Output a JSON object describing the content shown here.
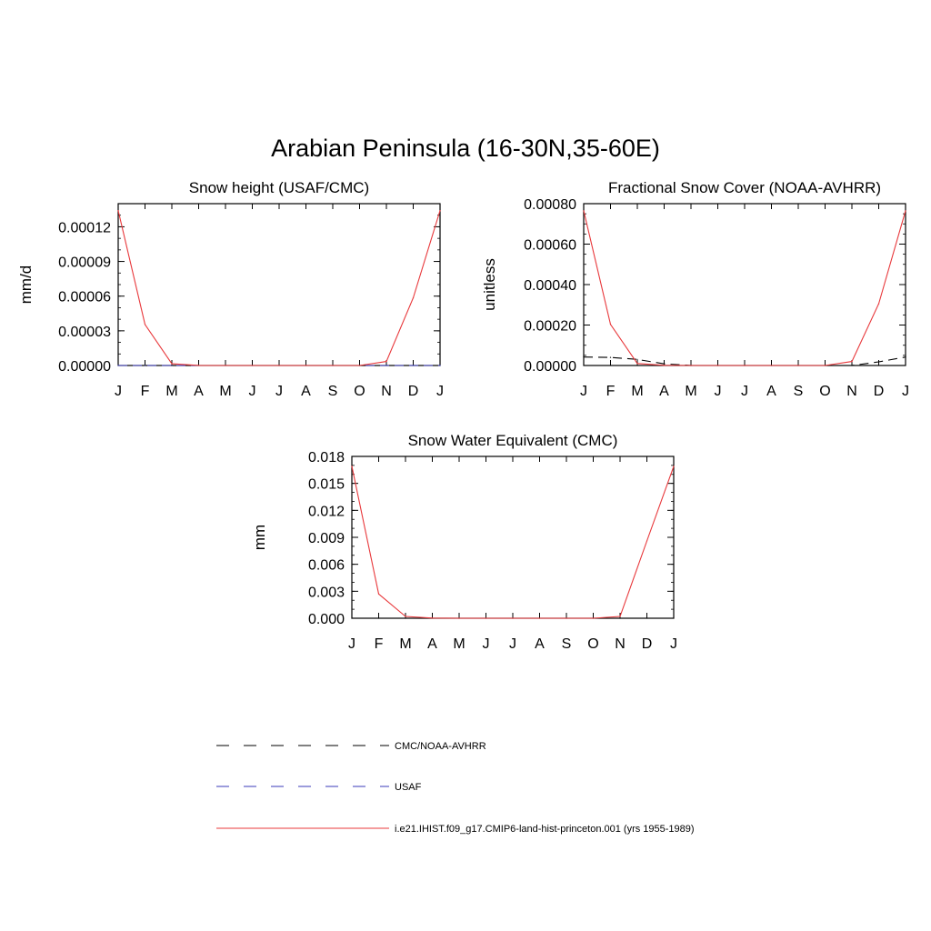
{
  "title": "Arabian Peninsula (16-30N,35-60E)",
  "chart_data": [
    {
      "type": "line",
      "title": "Snow height (USAF/CMC)",
      "ylabel": "mm/d",
      "categories": [
        "J",
        "F",
        "M",
        "A",
        "M",
        "J",
        "J",
        "A",
        "S",
        "O",
        "N",
        "D",
        "J"
      ],
      "ylim": [
        0,
        0.00014
      ],
      "yticks": [
        "0.00000",
        "0.00003",
        "0.00006",
        "0.00009",
        "0.00012"
      ],
      "ytick_values": [
        0,
        3e-05,
        6e-05,
        9e-05,
        0.00012
      ],
      "series": [
        {
          "name": "USAF",
          "color": "#3a3ab8",
          "dash": true,
          "values": [
            0,
            0,
            0,
            0,
            0,
            0,
            0,
            0,
            0,
            0,
            0,
            0,
            0
          ]
        },
        {
          "name": "i.e21.IHIST.f09_g17.CMIP6-land-hist-princeton.001 (yrs 1955-1989)",
          "color": "#e8383b",
          "dash": false,
          "values": [
            0.000134,
            3.55e-05,
            1.5e-06,
            1e-07,
            0,
            0,
            0,
            0,
            0,
            0,
            3.5e-06,
            5.85e-05,
            0.000134
          ]
        }
      ]
    },
    {
      "type": "line",
      "title": "Fractional Snow Cover (NOAA-AVHRR)",
      "ylabel": "unitless",
      "categories": [
        "J",
        "F",
        "M",
        "A",
        "M",
        "J",
        "J",
        "A",
        "S",
        "O",
        "N",
        "D",
        "J"
      ],
      "ylim": [
        0,
        0.0008
      ],
      "yticks": [
        "0.00000",
        "0.00020",
        "0.00040",
        "0.00060",
        "0.00080"
      ],
      "ytick_values": [
        0,
        0.0002,
        0.0004,
        0.0006,
        0.0008
      ],
      "series": [
        {
          "name": "CMC/NOAA-AVHRR",
          "color": "#000000",
          "dash": true,
          "values": [
            4.2e-05,
            4e-05,
            3e-05,
            8e-06,
            0,
            0,
            0,
            0,
            0,
            0,
            0,
            1.8e-05,
            4.2e-05
          ]
        },
        {
          "name": "i.e21.IHIST.f09_g17.CMIP6-land-hist-princeton.001 (yrs 1955-1989)",
          "color": "#e8383b",
          "dash": false,
          "values": [
            0.000765,
            0.000203,
            1e-05,
            1e-06,
            0,
            0,
            0,
            0,
            0,
            0,
            2e-05,
            0.000305,
            0.000765
          ]
        }
      ]
    },
    {
      "type": "line",
      "title": "Snow Water Equivalent (CMC)",
      "ylabel": "mm",
      "categories": [
        "J",
        "F",
        "M",
        "A",
        "M",
        "J",
        "J",
        "A",
        "S",
        "O",
        "N",
        "D",
        "J"
      ],
      "ylim": [
        0,
        0.018
      ],
      "yticks": [
        "0.000",
        "0.003",
        "0.006",
        "0.009",
        "0.012",
        "0.015",
        "0.018"
      ],
      "ytick_values": [
        0,
        0.003,
        0.006,
        0.009,
        0.012,
        0.015,
        0.018
      ],
      "series": [
        {
          "name": "CMC/NOAA-AVHRR",
          "color": "#000000",
          "dash": true,
          "values": [
            0,
            0,
            0,
            0,
            0,
            0,
            0,
            0,
            0,
            0,
            0,
            0,
            0
          ]
        },
        {
          "name": "i.e21.IHIST.f09_g17.CMIP6-land-hist-princeton.001 (yrs 1955-1989)",
          "color": "#e8383b",
          "dash": false,
          "values": [
            0.0169,
            0.0027,
            0.0002,
            2e-05,
            0,
            0,
            0,
            0,
            0,
            0,
            0.0002,
            0.0086,
            0.0169
          ]
        }
      ]
    }
  ],
  "legend": [
    {
      "label": "CMC/NOAA-AVHRR",
      "color": "#000000",
      "dash": true
    },
    {
      "label": "USAF",
      "color": "#3a3ab8",
      "dash": true
    },
    {
      "label": "i.e21.IHIST.f09_g17.CMIP6-land-hist-princeton.001 (yrs 1955-1989)",
      "color": "#e8383b",
      "dash": false
    }
  ]
}
